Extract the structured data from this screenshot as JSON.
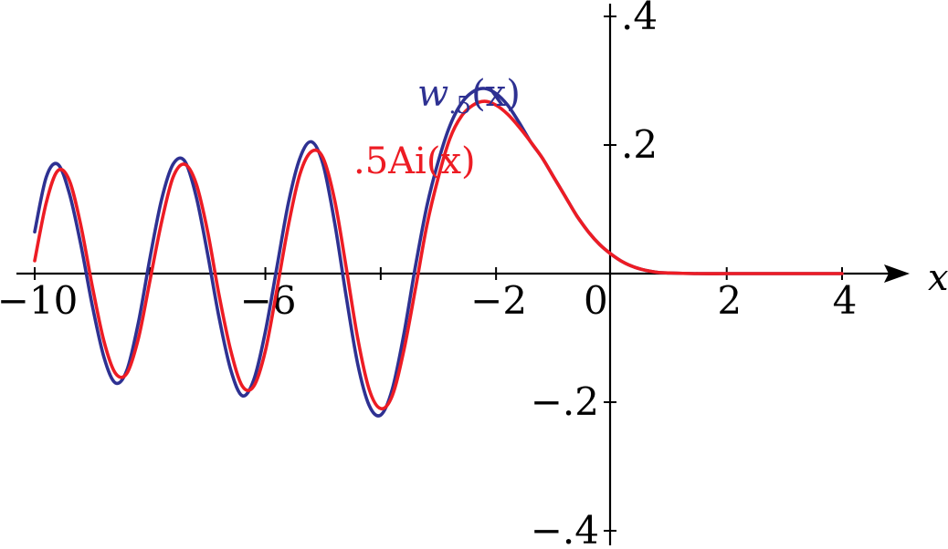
{
  "chart_data": {
    "type": "line",
    "title": "",
    "xlabel": "x",
    "ylabel": "",
    "xlim": [
      -10,
      4
    ],
    "ylim": [
      -0.4,
      0.4
    ],
    "grid": false,
    "x_ticks": [
      {
        "value": -10,
        "label": "−10"
      },
      {
        "value": -8,
        "label": ""
      },
      {
        "value": -6,
        "label": "−6"
      },
      {
        "value": -4,
        "label": ""
      },
      {
        "value": -2,
        "label": "−2"
      },
      {
        "value": 0,
        "label": "0"
      },
      {
        "value": 2,
        "label": "2"
      },
      {
        "value": 4,
        "label": "4"
      }
    ],
    "y_ticks": [
      {
        "value": 0.4,
        "label": ".4"
      },
      {
        "value": 0.2,
        "label": ".2"
      },
      {
        "value": -0.2,
        "label": "−.2"
      },
      {
        "value": -0.4,
        "label": "−.4"
      }
    ],
    "series": [
      {
        "name_main": "w",
        "name_sub": ".5",
        "name_arg": "(x)",
        "color": "#2e3192",
        "points": [
          [
            -10.0,
            0.065
          ],
          [
            -9.8,
            0.15
          ],
          [
            -9.6,
            0.17
          ],
          [
            -9.4,
            0.125
          ],
          [
            -9.2,
            0.045
          ],
          [
            -9.0,
            -0.05
          ],
          [
            -8.8,
            -0.13
          ],
          [
            -8.6,
            -0.17
          ],
          [
            -8.4,
            -0.15
          ],
          [
            -8.2,
            -0.075
          ],
          [
            -8.0,
            0.025
          ],
          [
            -7.8,
            0.115
          ],
          [
            -7.6,
            0.17
          ],
          [
            -7.4,
            0.175
          ],
          [
            -7.2,
            0.12
          ],
          [
            -7.0,
            0.03
          ],
          [
            -6.8,
            -0.07
          ],
          [
            -6.6,
            -0.15
          ],
          [
            -6.4,
            -0.19
          ],
          [
            -6.2,
            -0.165
          ],
          [
            -6.0,
            -0.09
          ],
          [
            -5.8,
            0.01
          ],
          [
            -5.6,
            0.11
          ],
          [
            -5.4,
            0.18
          ],
          [
            -5.2,
            0.205
          ],
          [
            -5.0,
            0.17
          ],
          [
            -4.8,
            0.08
          ],
          [
            -4.6,
            -0.035
          ],
          [
            -4.4,
            -0.14
          ],
          [
            -4.2,
            -0.205
          ],
          [
            -4.0,
            -0.22
          ],
          [
            -3.8,
            -0.18
          ],
          [
            -3.6,
            -0.095
          ],
          [
            -3.4,
            0.01
          ],
          [
            -3.2,
            0.105
          ],
          [
            -3.0,
            0.175
          ],
          [
            -2.8,
            0.23
          ],
          [
            -2.6,
            0.265
          ],
          [
            -2.4,
            0.283
          ],
          [
            -2.2,
            0.288
          ],
          [
            -2.0,
            0.28
          ],
          [
            -1.8,
            0.262
          ],
          [
            -1.6,
            0.235
          ],
          [
            -1.4,
            0.205
          ],
          [
            -1.2,
            0.18
          ],
          [
            -1.0,
            0.15
          ],
          [
            -0.8,
            0.12
          ],
          [
            -0.6,
            0.09
          ],
          [
            -0.4,
            0.065
          ],
          [
            -0.2,
            0.045
          ],
          [
            0.0,
            0.03
          ],
          [
            0.2,
            0.018
          ],
          [
            0.4,
            0.01
          ],
          [
            0.6,
            0.005
          ],
          [
            0.8,
            0.002
          ],
          [
            1.0,
            0.001
          ],
          [
            1.5,
            0.0
          ],
          [
            2.0,
            0.0
          ],
          [
            2.5,
            0.0
          ],
          [
            3.0,
            0.0
          ],
          [
            4.0,
            0.0
          ]
        ]
      },
      {
        "name_main": ".5Ai",
        "name_sub": "",
        "name_arg": "(x)",
        "color": "#ed1c24",
        "points": [
          [
            -10.0,
            0.02
          ],
          [
            -9.8,
            0.11
          ],
          [
            -9.6,
            0.16
          ],
          [
            -9.4,
            0.145
          ],
          [
            -9.2,
            0.075
          ],
          [
            -9.0,
            -0.02
          ],
          [
            -8.8,
            -0.105
          ],
          [
            -8.6,
            -0.155
          ],
          [
            -8.4,
            -0.155
          ],
          [
            -8.2,
            -0.1
          ],
          [
            -8.0,
            -0.01
          ],
          [
            -7.8,
            0.08
          ],
          [
            -7.6,
            0.15
          ],
          [
            -7.4,
            0.17
          ],
          [
            -7.2,
            0.14
          ],
          [
            -7.0,
            0.065
          ],
          [
            -6.8,
            -0.035
          ],
          [
            -6.6,
            -0.12
          ],
          [
            -6.4,
            -0.175
          ],
          [
            -6.2,
            -0.175
          ],
          [
            -6.0,
            -0.12
          ],
          [
            -5.8,
            -0.025
          ],
          [
            -5.6,
            0.075
          ],
          [
            -5.4,
            0.155
          ],
          [
            -5.2,
            0.19
          ],
          [
            -5.0,
            0.18
          ],
          [
            -4.8,
            0.115
          ],
          [
            -4.6,
            0.01
          ],
          [
            -4.4,
            -0.1
          ],
          [
            -4.2,
            -0.18
          ],
          [
            -4.0,
            -0.21
          ],
          [
            -3.8,
            -0.19
          ],
          [
            -3.6,
            -0.12
          ],
          [
            -3.4,
            -0.025
          ],
          [
            -3.2,
            0.075
          ],
          [
            -3.0,
            0.15
          ],
          [
            -2.8,
            0.21
          ],
          [
            -2.6,
            0.245
          ],
          [
            -2.4,
            0.262
          ],
          [
            -2.2,
            0.268
          ],
          [
            -2.0,
            0.262
          ],
          [
            -1.8,
            0.248
          ],
          [
            -1.6,
            0.228
          ],
          [
            -1.4,
            0.205
          ],
          [
            -1.2,
            0.18
          ],
          [
            -1.0,
            0.15
          ],
          [
            -0.8,
            0.12
          ],
          [
            -0.6,
            0.09
          ],
          [
            -0.4,
            0.065
          ],
          [
            -0.2,
            0.045
          ],
          [
            0.0,
            0.03
          ],
          [
            0.2,
            0.018
          ],
          [
            0.4,
            0.01
          ],
          [
            0.6,
            0.005
          ],
          [
            0.8,
            0.002
          ],
          [
            1.0,
            0.001
          ],
          [
            1.5,
            0.0
          ],
          [
            2.0,
            0.0
          ],
          [
            2.5,
            0.0
          ],
          [
            3.0,
            0.0
          ],
          [
            4.0,
            0.0
          ]
        ]
      }
    ]
  }
}
